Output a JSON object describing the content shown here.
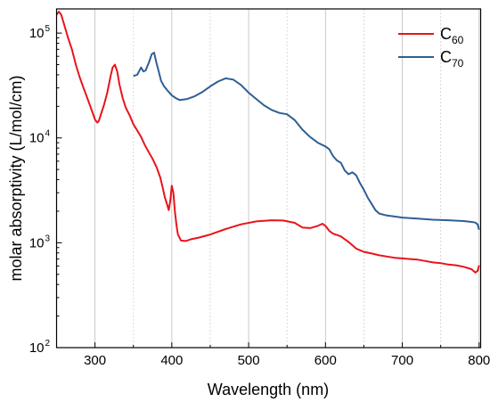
{
  "chart_data": {
    "type": "line",
    "xlabel": "Wavelength (nm)",
    "ylabel": "molar absorptivity (L/mol/cm)",
    "xlim": [
      250,
      802
    ],
    "ylim": [
      100,
      170000
    ],
    "yscale": "log",
    "x_ticks": [
      300,
      400,
      500,
      600,
      700,
      800
    ],
    "x_tick_labels": [
      "300",
      "400",
      "500",
      "600",
      "700",
      "800"
    ],
    "x_minor_gridlines": [
      350,
      450,
      550,
      650,
      750
    ],
    "y_ticks": [
      {
        "value": 100,
        "base": "10",
        "exp": "2"
      },
      {
        "value": 1000,
        "base": "10",
        "exp": "3"
      },
      {
        "value": 10000,
        "base": "10",
        "exp": "4"
      },
      {
        "value": 100000,
        "base": "10",
        "exp": "5"
      }
    ],
    "grid": "vertical",
    "legend_position": "top-right",
    "series": [
      {
        "name": "C60",
        "name_main": "C",
        "name_sub": "60",
        "color": "#e8141b",
        "x": [
          250,
          253,
          256,
          260,
          265,
          270,
          275,
          280,
          285,
          290,
          295,
          300,
          303,
          305,
          308,
          312,
          316,
          320,
          323,
          326,
          329,
          332,
          336,
          340,
          345,
          350,
          355,
          360,
          365,
          370,
          375,
          380,
          385,
          388,
          391,
          394,
          396,
          398,
          400,
          402,
          404,
          406,
          408,
          412,
          418,
          425,
          435,
          450,
          470,
          490,
          510,
          530,
          545,
          560,
          570,
          580,
          590,
          596,
          600,
          605,
          610,
          620,
          630,
          640,
          650,
          660,
          670,
          680,
          690,
          700,
          710,
          720,
          730,
          740,
          750,
          760,
          770,
          780,
          790,
          795,
          798,
          800
        ],
        "y": [
          150000,
          160000,
          150000,
          120000,
          90000,
          70000,
          50000,
          38000,
          30000,
          24000,
          19000,
          15000,
          14000,
          14500,
          17000,
          21000,
          27000,
          38000,
          47000,
          50000,
          43000,
          32000,
          24000,
          19500,
          16500,
          13500,
          11800,
          10200,
          8500,
          7300,
          6300,
          5300,
          4200,
          3400,
          2700,
          2300,
          2050,
          2500,
          3500,
          3000,
          2000,
          1500,
          1200,
          1050,
          1040,
          1080,
          1120,
          1200,
          1350,
          1500,
          1600,
          1640,
          1630,
          1550,
          1400,
          1380,
          1450,
          1520,
          1450,
          1300,
          1220,
          1150,
          1020,
          880,
          820,
          790,
          760,
          740,
          720,
          710,
          700,
          690,
          670,
          650,
          640,
          620,
          610,
          590,
          560,
          520,
          540,
          610
        ]
      },
      {
        "name": "C70",
        "name_main": "C",
        "name_sub": "70",
        "color": "#2e5f94",
        "x": [
          350,
          355,
          360,
          363,
          366,
          370,
          374,
          377,
          380,
          383,
          386,
          390,
          395,
          400,
          405,
          410,
          420,
          430,
          440,
          450,
          460,
          470,
          480,
          490,
          500,
          510,
          520,
          530,
          540,
          550,
          560,
          570,
          580,
          590,
          600,
          605,
          610,
          615,
          620,
          625,
          630,
          635,
          640,
          645,
          650,
          655,
          660,
          665,
          670,
          680,
          690,
          700,
          720,
          740,
          760,
          780,
          790,
          795,
          798,
          800
        ],
        "y": [
          39000,
          40000,
          47000,
          43000,
          44000,
          52000,
          63000,
          65000,
          52000,
          43000,
          35000,
          31000,
          28000,
          25500,
          24000,
          23000,
          23500,
          25000,
          27500,
          31000,
          34500,
          37000,
          36000,
          32000,
          27000,
          23500,
          20500,
          18500,
          17300,
          16800,
          14800,
          12000,
          10200,
          9000,
          8300,
          7800,
          6700,
          6100,
          5800,
          4900,
          4500,
          4700,
          4400,
          3700,
          3200,
          2700,
          2350,
          2050,
          1900,
          1820,
          1780,
          1740,
          1700,
          1660,
          1640,
          1610,
          1580,
          1560,
          1500,
          1330
        ]
      }
    ]
  }
}
